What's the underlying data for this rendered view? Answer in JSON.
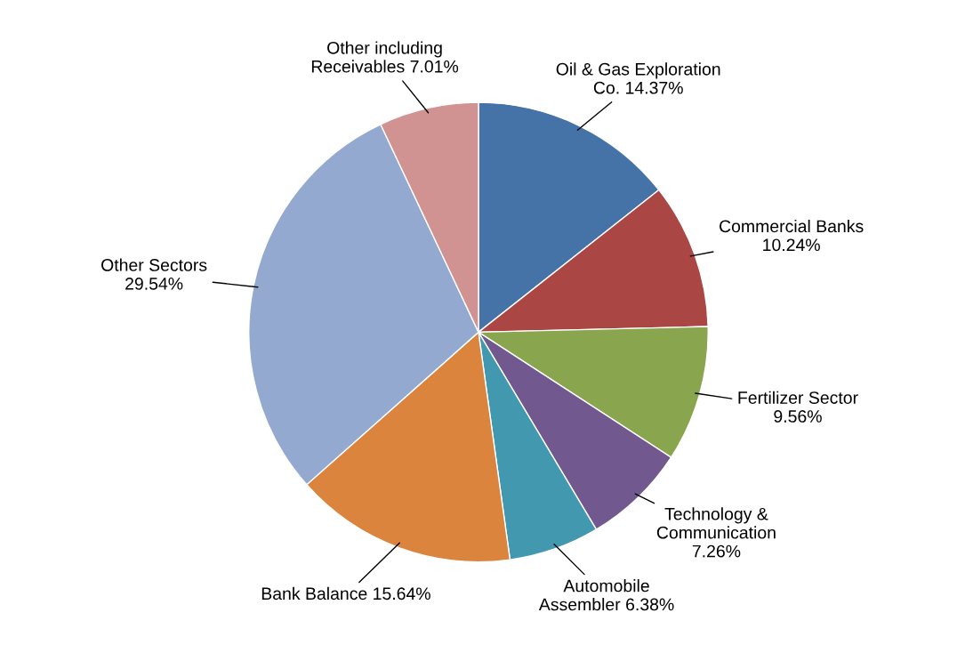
{
  "chart_data": {
    "type": "pie",
    "categories": [
      "Oil & Gas Exploration\nCo. 14.37%",
      "Commercial Banks\n10.24%",
      "Fertilizer Sector\n9.56%",
      "Technology &\nCommunication\n7.26%",
      "Automobile\nAssembler 6.38%",
      "Bank Balance 15.64%",
      "Other Sectors\n29.54%",
      "Other including\nReceivables 7.01%"
    ],
    "values": [
      14.37,
      10.24,
      9.56,
      7.26,
      6.38,
      15.64,
      29.54,
      7.01
    ],
    "colors": [
      "#4572a7",
      "#aa4643",
      "#89a54e",
      "#71588f",
      "#4198af",
      "#db843d",
      "#93a9cf",
      "#d19392"
    ]
  }
}
